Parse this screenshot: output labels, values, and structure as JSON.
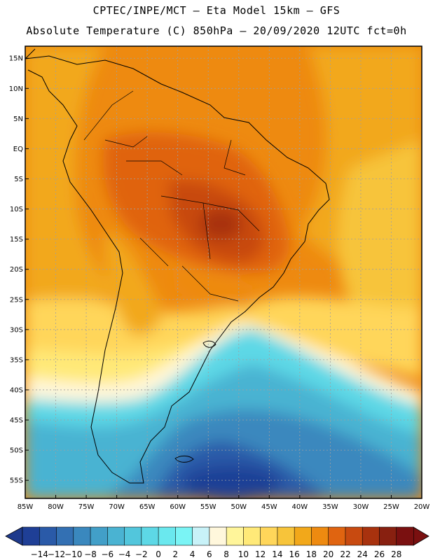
{
  "header": {
    "line1": "CPTEC/INPE/MCT –  Eta Model 15km – GFS",
    "line2": "Absolute Temperature (C) 850hPa – 20/09/2020 12UTC fct=0h"
  },
  "map": {
    "lat_ticks": [
      "15N",
      "10N",
      "5N",
      "EQ",
      "5S",
      "10S",
      "15S",
      "20S",
      "25S",
      "30S",
      "35S",
      "40S",
      "45S",
      "50S",
      "55S"
    ],
    "lon_ticks": [
      "85W",
      "80W",
      "75W",
      "70W",
      "65W",
      "60W",
      "55W",
      "50W",
      "45W",
      "40W",
      "35W",
      "30W",
      "25W",
      "20W"
    ],
    "lon_range": [
      -85,
      -20
    ],
    "lat_range": [
      -58,
      17
    ],
    "variable": "Temperature (C) at 850hPa"
  },
  "colorbar": {
    "labels": [
      "-14",
      "-12",
      "-10",
      "-8",
      "-6",
      "-4",
      "-2",
      "0",
      "2",
      "4",
      "6",
      "8",
      "10",
      "12",
      "14",
      "16",
      "18",
      "20",
      "22",
      "24",
      "26",
      "28"
    ],
    "colors": [
      "#1f3f96",
      "#2a5aa8",
      "#3370b3",
      "#3a88be",
      "#429fc8",
      "#4ab3d2",
      "#52c6dc",
      "#5dd8e6",
      "#6ae8ee",
      "#7af4f5",
      "#c8f2f8",
      "#fff7dc",
      "#fff59a",
      "#ffe978",
      "#ffd65a",
      "#f7c43a",
      "#f2a81a",
      "#ee8a10",
      "#e06410",
      "#c84a10",
      "#a8320e",
      "#882010",
      "#7a1010"
    ],
    "under_color": "#1e3a8c",
    "over_color": "#7a1010"
  }
}
